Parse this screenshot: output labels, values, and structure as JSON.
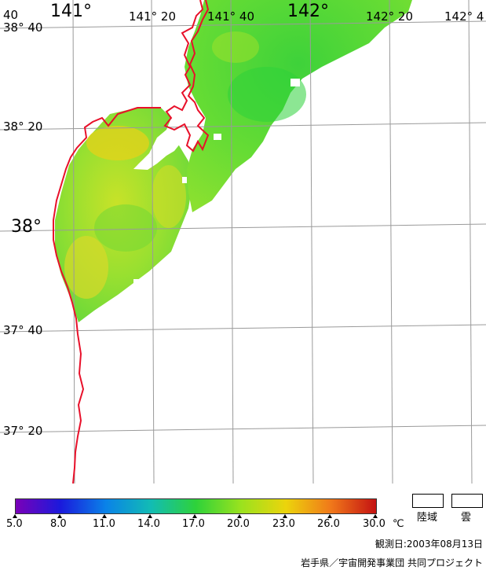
{
  "map": {
    "lon_labels": [
      "141°",
      "141° 20",
      "141° 40",
      "142°",
      "142° 20",
      "142° 4"
    ],
    "lat_labels": [
      "38° 40",
      "38° 20",
      "38°",
      "37° 40",
      "37° 20"
    ],
    "corner_label": "40",
    "coast_color": "#e8102a",
    "grid_color": "#9a9a9a",
    "land_color": "#ffffff"
  },
  "legend": {
    "scale_labels": [
      "5.0",
      "8.0",
      "11.0",
      "14.0",
      "17.0",
      "20.0",
      "23.0",
      "26.0",
      "30.0"
    ],
    "unit": "℃",
    "colors": [
      "#7a00b8",
      "#1a1adc",
      "#0a82e8",
      "#12bcb4",
      "#2ed23a",
      "#9ae21e",
      "#ecd40c",
      "#f0781a",
      "#c41212"
    ],
    "land_label": "陸域",
    "cloud_label": "雲"
  },
  "footer": {
    "observation_date": "観測日:2003年08月13日",
    "credit": "岩手県／宇宙開発事業団 共同プロジェクト"
  }
}
